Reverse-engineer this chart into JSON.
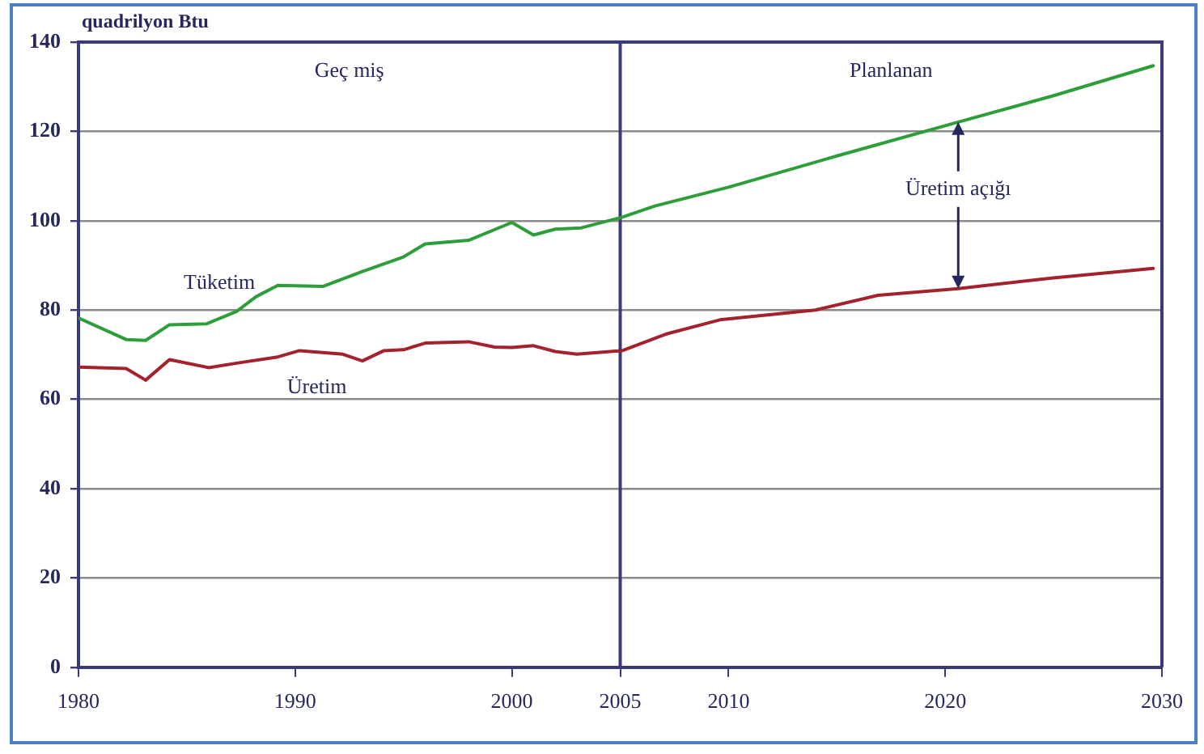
{
  "chart_data": {
    "type": "line",
    "ylabel": "quadrilyon Btu",
    "xlim": [
      1980,
      2030
    ],
    "xticks": [
      1980,
      1990,
      2000,
      2005,
      2010,
      2020,
      2030
    ],
    "ylim": [
      0,
      140
    ],
    "yticks": [
      0,
      20,
      40,
      60,
      80,
      100,
      120,
      140
    ],
    "grid": "y",
    "legend": false,
    "marker": "none",
    "line_style": "solid",
    "series": [
      {
        "name": "Tüketim",
        "color": "#2e9e3a",
        "x": [
          1980,
          1982.2,
          1983.1,
          1984.2,
          1985.9,
          1987.3,
          1988.2,
          1989.2,
          1991.3,
          1993.1,
          1995,
          1996,
          1998,
          2000,
          2001,
          2002,
          2003.2,
          2005.1,
          2006.6,
          2010,
          2015,
          2020.6,
          2025,
          2029.6
        ],
        "values": [
          78.2,
          73.4,
          73.2,
          76.7,
          76.9,
          79.7,
          83,
          85.5,
          85.3,
          88.6,
          91.9,
          94.8,
          95.6,
          99.6,
          96.8,
          98.1,
          98.4,
          100.8,
          103.3,
          107.5,
          114.5,
          122.1,
          128,
          134.7
        ]
      },
      {
        "name": "Üretim",
        "color": "#a3222c",
        "x": [
          1980,
          1982.2,
          1983.1,
          1984.2,
          1986,
          1987.3,
          1989.2,
          1990.2,
          1992.2,
          1993.1,
          1994.1,
          1995,
          1996,
          1998,
          1999.2,
          2000,
          2001,
          2002,
          2003,
          2005.1,
          2007.1,
          2009.6,
          2014,
          2016.9,
          2020.6,
          2025,
          2029.6
        ],
        "values": [
          67.2,
          66.9,
          64.3,
          68.9,
          67.1,
          68.1,
          69.5,
          70.9,
          70.1,
          68.6,
          70.9,
          71.1,
          72.6,
          72.9,
          71.7,
          71.6,
          72,
          70.7,
          70.1,
          70.9,
          74.6,
          77.8,
          80,
          83.3,
          84.8,
          87.2,
          89.3
        ]
      }
    ],
    "ref_lines": [
      {
        "axis": "x",
        "value": 2005,
        "color": "#3a3a7a"
      }
    ],
    "annotations": [
      "Geç miş",
      "Planlanan",
      {
        "text": "Üretim açığı",
        "x": 2020.6,
        "y": 122.1
      }
    ]
  }
}
